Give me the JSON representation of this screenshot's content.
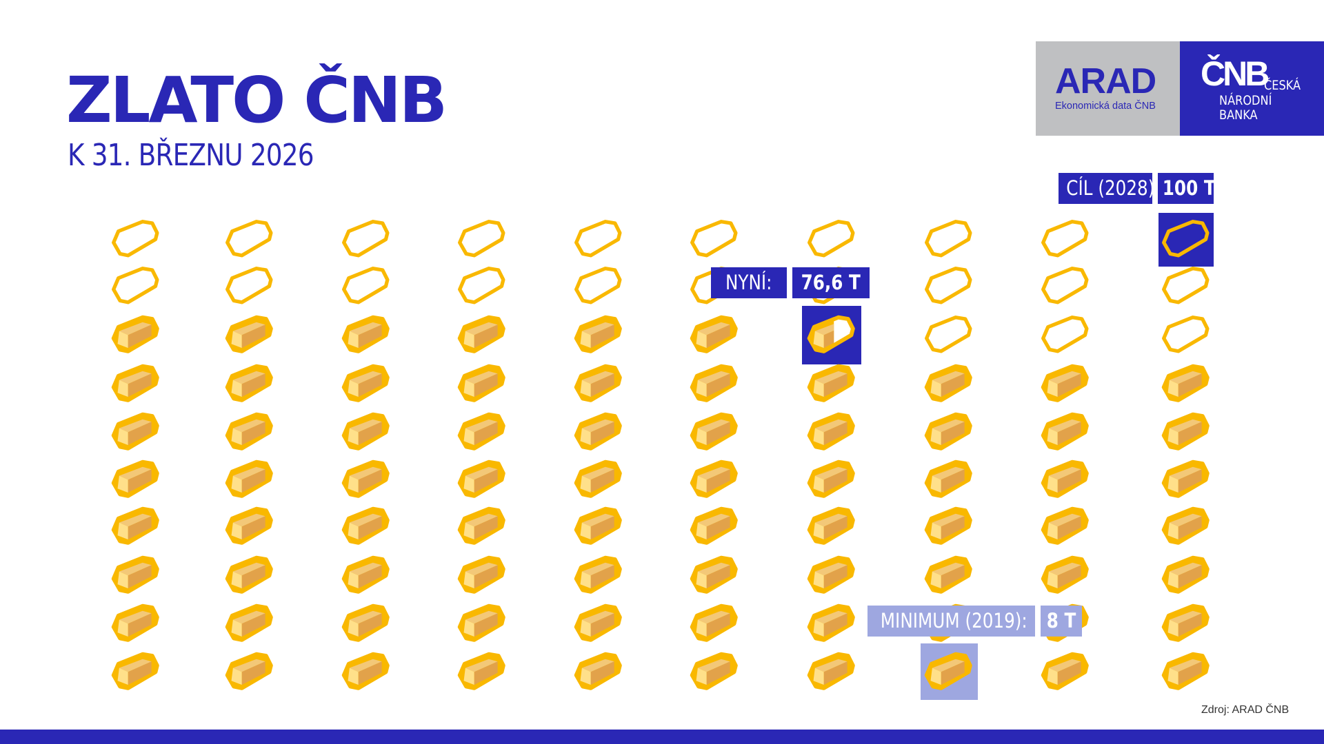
{
  "header": {
    "title": "ZLATO ČNB",
    "subtitle": "K 31. BŘEZNU 2026"
  },
  "logos": {
    "arad": {
      "name": "ARAD",
      "tagline": "Ekonomická data ČNB"
    },
    "cnb": {
      "mark": "ČNB",
      "line1": "ČESKÁ",
      "line2": "NÁRODNÍ",
      "line3": "BANKA"
    }
  },
  "annotations": {
    "target": {
      "label": "CÍL (2028)",
      "value": "100 T"
    },
    "current": {
      "label": "NYNÍ:",
      "value": "76,6 T"
    },
    "minimum": {
      "label": "MINIMUM (2019):",
      "value": "8 T"
    }
  },
  "chart_data": {
    "type": "pictogram",
    "unit": "T",
    "units_per_icon": 1,
    "grid": {
      "columns": 10,
      "rows": 10
    },
    "fill_order": "row-by-row from bottom-left",
    "total": 100,
    "current": 76.6,
    "minimum": 8,
    "target": 100
  },
  "colors": {
    "brand_blue": "#2a27b5",
    "light_blue": "#9ea7e0",
    "gold_outline": "#f9b800",
    "gold_fill": "#f0b040"
  },
  "footer": {
    "source": "Zdroj: ARAD ČNB"
  }
}
